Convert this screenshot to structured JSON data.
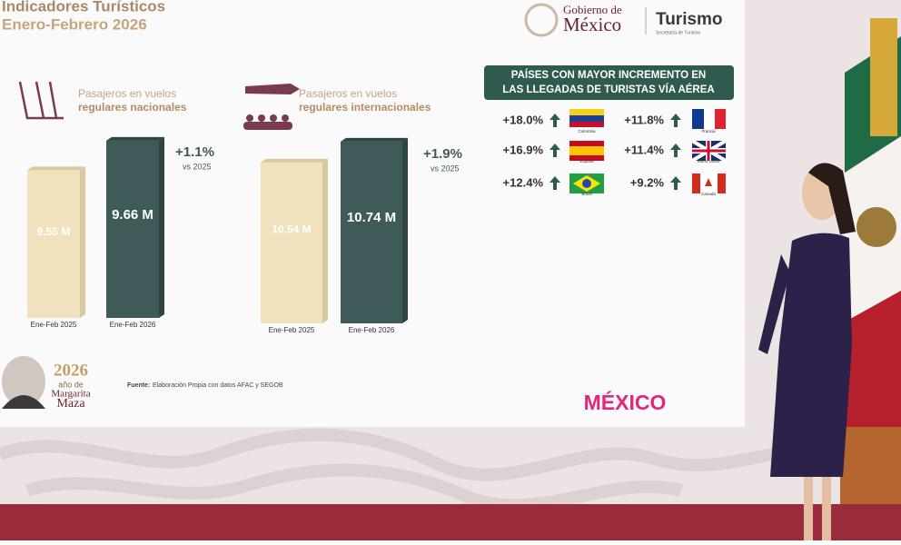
{
  "header": {
    "title": "Indicadores Turísticos",
    "subtitle": "Enero-Febrero 2026"
  },
  "logo": {
    "line1": "Gobierno de",
    "line2": "México",
    "agency": "Turismo",
    "agency_sub": "Secretaría de Turismo"
  },
  "chart_data": [
    {
      "type": "bar",
      "title_line1": "Pasajeros en vuelos",
      "title_line2": "regulares nacionales",
      "categories": [
        "Ene-Feb 2025",
        "Ene-Feb 2026"
      ],
      "values": [
        9.55,
        9.66
      ],
      "value_labels": [
        "9.55 M",
        "9.66 M"
      ],
      "colors": [
        "#efe2bd",
        "#3e5b5a"
      ],
      "annotation": "+1.1%",
      "annotation_sub": "vs 2025",
      "ylim": [
        9,
        9.7
      ]
    },
    {
      "type": "bar",
      "title_line1": "Pasajeros en vuelos",
      "title_line2": "regulares internacionales",
      "categories": [
        "Ene-Feb 2025",
        "Ene-Feb 2026"
      ],
      "values": [
        10.54,
        10.74
      ],
      "value_labels": [
        "10.54 M",
        "10.74 M"
      ],
      "colors": [
        "#efe2bd",
        "#3e5b5a"
      ],
      "annotation": "+1.9%",
      "annotation_sub": "vs 2025",
      "ylim": [
        9,
        10.8
      ]
    }
  ],
  "countries": {
    "title_line1": "PAÍSES CON MAYOR INCREMENTO EN",
    "title_line2": "LAS LLEGADAS DE TURISTAS VÍA AÉREA",
    "items": [
      {
        "change": "+18.0%",
        "country": "Colombia"
      },
      {
        "change": "+16.9%",
        "country": "España"
      },
      {
        "change": "+12.4%",
        "country": "Brasil"
      },
      {
        "change": "+11.8%",
        "country": "Francia"
      },
      {
        "change": "+11.4%",
        "country": "Reino Unido"
      },
      {
        "change": "+9.2%",
        "country": "Canadá"
      }
    ]
  },
  "footer": {
    "source_label": "Fuente:",
    "source": "Elaboración Propia con datos AFAC y SEGOB",
    "year": "2026",
    "year_sub": "año de",
    "name1": "Margarita",
    "name2": "Maza",
    "brand": "MÉXICO"
  }
}
